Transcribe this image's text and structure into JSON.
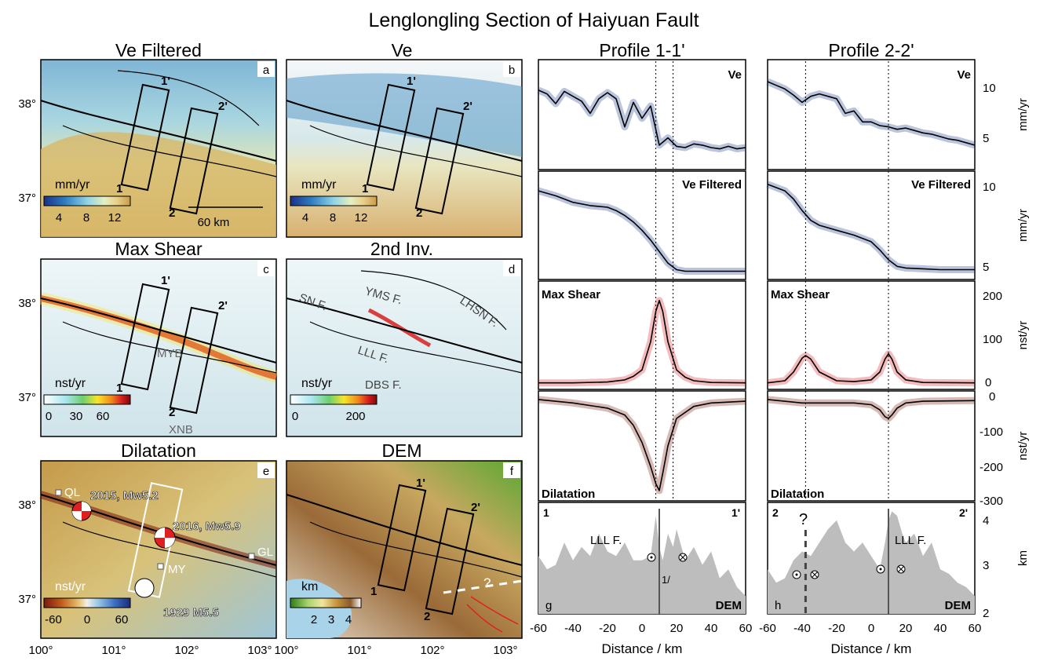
{
  "figure_title": "Lenglongling Section of Haiyuan Fault",
  "colors": {
    "velocity_ramp": [
      "#1c2f8a",
      "#2f7fc2",
      "#8fd3e6",
      "#e6efc0",
      "#e8cf86",
      "#c99a48"
    ],
    "shear_ramp": [
      "#ffffff",
      "#a8e6f0",
      "#6dd06d",
      "#f7e52a",
      "#f08a1c",
      "#d81e1e",
      "#7a0a0a"
    ],
    "dilatation_ramp": [
      "#7a1a0a",
      "#c05a1a",
      "#e6c070",
      "#f2f0e8",
      "#9ccbe6",
      "#3a6fc2",
      "#1c2a7a"
    ],
    "dem_ramp": [
      "#2e7d1a",
      "#a9d46a",
      "#f0e6a0",
      "#c8963c",
      "#8a5a2a",
      "#ffffff"
    ],
    "water": "#a9d3e8",
    "rupture": "#e02020"
  },
  "maps": {
    "a": {
      "title": "Ve Filtered",
      "letter": "a",
      "cbar_title": "mm/yr",
      "cbar_ticks": [
        "4",
        "8",
        "12"
      ],
      "scale_label": "60 km"
    },
    "b": {
      "title": "Ve",
      "letter": "b",
      "cbar_title": "mm/yr",
      "cbar_ticks": [
        "4",
        "8",
        "12"
      ]
    },
    "c": {
      "title": "Max Shear",
      "letter": "c",
      "cbar_title": "nst/yr",
      "cbar_ticks": [
        "0",
        "30",
        "60"
      ],
      "labels": [
        "MYB",
        "XNB"
      ]
    },
    "d": {
      "title": "2nd Inv.",
      "letter": "d",
      "cbar_title": "nst/yr",
      "cbar_ticks": [
        "0",
        "200"
      ],
      "labels": [
        "SN F.",
        "YMS F.",
        "LHSN F.",
        "LLL F.",
        "DBS F."
      ]
    },
    "e": {
      "title": "Dilatation",
      "letter": "e",
      "cbar_title": "nst/yr",
      "cbar_ticks": [
        "-60",
        "0",
        "60"
      ],
      "stations": [
        "QL",
        "MY",
        "GL"
      ],
      "events": [
        "2015, Mw5.2",
        "2016, Mw5.9",
        "1929 M5.5"
      ]
    },
    "f": {
      "title": "DEM",
      "letter": "f",
      "cbar_title": "km",
      "cbar_ticks": [
        "2",
        "3",
        "4"
      ],
      "query": "?"
    }
  },
  "map_axes": {
    "lat_ticks": [
      "38°",
      "37°"
    ],
    "lon_ticks": [
      "100°",
      "101°",
      "102°",
      "103°"
    ]
  },
  "profile_ends": {
    "p1_start": "1",
    "p1_end": "1'",
    "p2_start": "2",
    "p2_end": "2'"
  },
  "profiles": {
    "p1_title": "Profile 1-1'",
    "p2_title": "Profile 2-2'",
    "row_labels": [
      "Ve",
      "Ve Filtered",
      "Max Shear",
      "Dilatation",
      "DEM"
    ],
    "dem_panel_letters": [
      "g",
      "h"
    ],
    "fault_label": "LLL F.",
    "query": "?",
    "sense": "1/",
    "units": [
      "mm/yr",
      "mm/yr",
      "nst/yr",
      "nst/yr",
      "km"
    ],
    "yticks": {
      "ve": [
        "10",
        "5"
      ],
      "vef": [
        "10",
        "5"
      ],
      "shear": [
        "200",
        "100",
        "0"
      ],
      "dil": [
        "0",
        "-100",
        "-200",
        "-300"
      ],
      "dem": [
        "4",
        "3",
        "2"
      ]
    },
    "xticks": [
      "-60",
      "-40",
      "-20",
      "0",
      "20",
      "40",
      "60"
    ],
    "xlabel": "Distance / km"
  },
  "chart_data": [
    {
      "type": "line",
      "name": "Profile 1-1' Ve",
      "x": [
        -60,
        -55,
        -50,
        -45,
        -40,
        -35,
        -30,
        -25,
        -20,
        -15,
        -10,
        -5,
        0,
        5,
        10,
        15,
        20,
        25,
        30,
        35,
        40,
        45,
        50,
        55,
        60
      ],
      "y": [
        9.5,
        9.2,
        8.4,
        9.4,
        9.0,
        8.6,
        7.6,
        8.8,
        9.3,
        8.8,
        6.5,
        8.5,
        7.2,
        8.2,
        5.0,
        5.6,
        4.9,
        4.8,
        5.1,
        5.0,
        4.8,
        4.7,
        4.9,
        4.7,
        4.8
      ],
      "ylim": [
        3,
        12
      ],
      "ylabel": "mm/yr"
    },
    {
      "type": "line",
      "name": "Profile 2-2' Ve",
      "x": [
        -60,
        -55,
        -50,
        -45,
        -40,
        -35,
        -30,
        -25,
        -20,
        -15,
        -10,
        -5,
        0,
        5,
        10,
        15,
        20,
        25,
        30,
        35,
        40,
        45,
        50,
        55,
        60
      ],
      "y": [
        10.2,
        9.9,
        9.6,
        9.1,
        8.5,
        9.0,
        9.2,
        9.0,
        8.8,
        7.6,
        7.8,
        6.9,
        6.9,
        6.6,
        6.5,
        6.3,
        6.4,
        6.2,
        6.0,
        5.9,
        5.7,
        5.5,
        5.4,
        5.2,
        5.0
      ],
      "ylim": [
        3,
        12
      ],
      "ylabel": "mm/yr"
    },
    {
      "type": "line",
      "name": "Profile 1-1' Ve Filtered",
      "x": [
        -60,
        -50,
        -40,
        -30,
        -20,
        -15,
        -10,
        -5,
        0,
        5,
        10,
        15,
        20,
        25,
        30,
        40,
        50,
        60
      ],
      "y": [
        9.6,
        9.3,
        8.9,
        8.7,
        8.6,
        8.4,
        8.1,
        7.7,
        7.2,
        6.6,
        5.9,
        5.2,
        4.8,
        4.7,
        4.7,
        4.7,
        4.7,
        4.7
      ],
      "ylim": [
        4.2,
        10.8
      ],
      "ylabel": "mm/yr"
    },
    {
      "type": "line",
      "name": "Profile 2-2' Ve Filtered",
      "x": [
        -60,
        -50,
        -45,
        -40,
        -35,
        -30,
        -20,
        -10,
        0,
        5,
        10,
        15,
        20,
        30,
        40,
        50,
        60
      ],
      "y": [
        10.0,
        9.6,
        9.1,
        8.4,
        7.8,
        7.5,
        7.2,
        6.9,
        6.5,
        6.0,
        5.4,
        5.0,
        4.9,
        4.85,
        4.8,
        4.8,
        4.8
      ],
      "ylim": [
        4.2,
        10.8
      ],
      "ylabel": "mm/yr"
    },
    {
      "type": "line",
      "name": "Profile 1-1' Max Shear",
      "x": [
        -60,
        -40,
        -20,
        -10,
        -5,
        0,
        5,
        8,
        10,
        12,
        15,
        20,
        25,
        30,
        40,
        60
      ],
      "y": [
        5,
        5,
        7,
        12,
        20,
        35,
        100,
        170,
        195,
        170,
        100,
        35,
        18,
        10,
        6,
        5
      ],
      "ylim": [
        -10,
        240
      ],
      "ylabel": "nst/yr"
    },
    {
      "type": "line",
      "name": "Profile 2-2' Max Shear",
      "x": [
        -60,
        -50,
        -45,
        -40,
        -38,
        -35,
        -30,
        -20,
        -10,
        0,
        5,
        8,
        10,
        12,
        15,
        20,
        30,
        60
      ],
      "y": [
        5,
        10,
        30,
        62,
        68,
        60,
        30,
        10,
        8,
        12,
        30,
        60,
        72,
        60,
        30,
        12,
        6,
        5
      ],
      "ylim": [
        -10,
        240
      ],
      "ylabel": "nst/yr"
    },
    {
      "type": "line",
      "name": "Profile 1-1' Dilatation",
      "x": [
        -60,
        -40,
        -20,
        -10,
        -5,
        0,
        5,
        8,
        10,
        12,
        15,
        20,
        30,
        40,
        60
      ],
      "y": [
        -5,
        -15,
        -30,
        -50,
        -80,
        -130,
        -200,
        -250,
        -270,
        -220,
        -140,
        -60,
        -25,
        -15,
        -10
      ],
      "ylim": [
        -300,
        20
      ],
      "ylabel": "nst/yr"
    },
    {
      "type": "line",
      "name": "Profile 2-2' Dilatation",
      "x": [
        -60,
        -40,
        -20,
        -10,
        0,
        5,
        8,
        10,
        12,
        15,
        20,
        30,
        60
      ],
      "y": [
        -5,
        -15,
        -15,
        -15,
        -20,
        -35,
        -55,
        -60,
        -50,
        -30,
        -15,
        -10,
        -8
      ],
      "ylim": [
        -300,
        20
      ],
      "ylabel": "nst/yr"
    },
    {
      "type": "area",
      "name": "Profile 1-1' DEM",
      "x": [
        -60,
        -55,
        -50,
        -45,
        -40,
        -35,
        -30,
        -25,
        -20,
        -15,
        -10,
        -5,
        0,
        5,
        8,
        10,
        12,
        15,
        18,
        20,
        25,
        30,
        35,
        40,
        45,
        50,
        55,
        60
      ],
      "y": [
        3.3,
        3.0,
        3.1,
        3.6,
        3.2,
        3.5,
        3.3,
        3.8,
        3.4,
        3.3,
        3.6,
        3.2,
        3.2,
        3.3,
        4.2,
        3.5,
        3.2,
        3.8,
        3.5,
        3.9,
        3.2,
        3.5,
        3.1,
        3.4,
        2.8,
        3.0,
        2.6,
        2.4
      ],
      "ylim": [
        2,
        4.5
      ],
      "ylabel": "km"
    },
    {
      "type": "area",
      "name": "Profile 2-2' DEM",
      "x": [
        -60,
        -55,
        -50,
        -45,
        -40,
        -35,
        -30,
        -25,
        -20,
        -15,
        -10,
        -5,
        0,
        5,
        8,
        10,
        12,
        15,
        18,
        20,
        25,
        30,
        35,
        40,
        45,
        50,
        55,
        60
      ],
      "y": [
        3.0,
        2.7,
        2.8,
        3.2,
        3.4,
        3.3,
        3.6,
        3.9,
        4.1,
        3.6,
        3.4,
        3.6,
        3.3,
        3.0,
        3.6,
        4.1,
        4.3,
        4.2,
        3.8,
        3.6,
        3.8,
        3.3,
        3.6,
        3.0,
        2.9,
        2.7,
        2.6,
        2.4
      ],
      "ylim": [
        2,
        4.5
      ],
      "ylabel": "km"
    }
  ]
}
